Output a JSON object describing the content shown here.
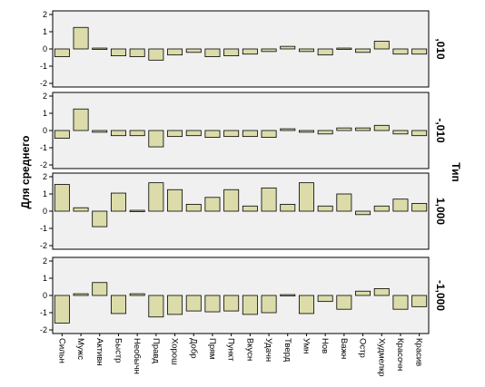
{
  "chart_data": {
    "type": "bar",
    "ylabel": "Для среднего",
    "facet_label": "Тип",
    "ylim": [
      -2,
      2
    ],
    "yticks": [
      "2",
      "1",
      "0",
      "-1",
      "-2"
    ],
    "grid": false,
    "categories": [
      "Сильн",
      "Мужс",
      "Активн",
      "Быстр",
      "Необычн",
      "Правд",
      "Хорош",
      "Добр",
      "Прям",
      "Пункт",
      "Вкусн",
      "Удачн",
      "Тверд",
      "Умн",
      "Нов",
      "Важн",
      "Остр",
      "Худмелкр",
      "Красочн",
      "Красив"
    ],
    "panels": [
      {
        "label": ",010",
        "values": [
          -0.45,
          1.25,
          0.05,
          -0.4,
          -0.45,
          -0.65,
          -0.35,
          -0.2,
          -0.45,
          -0.4,
          -0.3,
          -0.15,
          0.15,
          -0.15,
          -0.35,
          0.05,
          -0.2,
          0.45,
          -0.3,
          -0.3
        ]
      },
      {
        "label": "-,010",
        "values": [
          -0.45,
          1.25,
          -0.1,
          -0.3,
          -0.3,
          -0.95,
          -0.35,
          -0.3,
          -0.4,
          -0.35,
          -0.35,
          -0.4,
          0.1,
          -0.1,
          -0.2,
          0.15,
          0.15,
          0.3,
          -0.2,
          -0.3
        ]
      },
      {
        "label": "1,000",
        "values": [
          1.55,
          0.2,
          -0.9,
          1.05,
          0.05,
          1.65,
          1.25,
          0.4,
          0.8,
          1.25,
          0.3,
          1.35,
          0.4,
          1.65,
          0.3,
          1.0,
          -0.2,
          0.3,
          0.7,
          0.45
        ]
      },
      {
        "label": "-1,000",
        "values": [
          -1.6,
          0.1,
          0.75,
          -1.05,
          0.1,
          -1.25,
          -1.1,
          -0.9,
          -0.95,
          -0.9,
          -1.1,
          -1.0,
          0.05,
          -1.05,
          -0.35,
          -0.8,
          0.25,
          0.4,
          -0.8,
          -0.65
        ]
      }
    ],
    "colors": {
      "bar_fill": "#dcdcaa",
      "bar_stroke": "#000000",
      "panel_bg": "#f0f0f0",
      "panel_border": "#000000"
    }
  }
}
